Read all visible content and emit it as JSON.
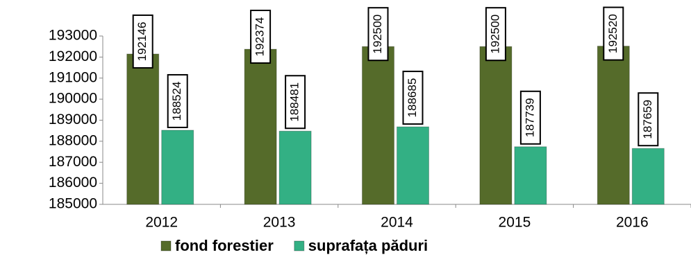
{
  "chart_data": {
    "type": "bar",
    "categories": [
      "2012",
      "2013",
      "2014",
      "2015",
      "2016"
    ],
    "series": [
      {
        "name": "fond forestier",
        "color": "#556b2a",
        "values": [
          192146,
          192374,
          192500,
          192500,
          192520
        ]
      },
      {
        "name": "suprafața păduri",
        "color": "#33b084",
        "values": [
          188524,
          188481,
          188685,
          187739,
          187659
        ]
      }
    ],
    "ylim": [
      185000,
      193000
    ],
    "yticks": [
      185000,
      186000,
      187000,
      188000,
      189000,
      190000,
      191000,
      192000,
      193000
    ]
  }
}
